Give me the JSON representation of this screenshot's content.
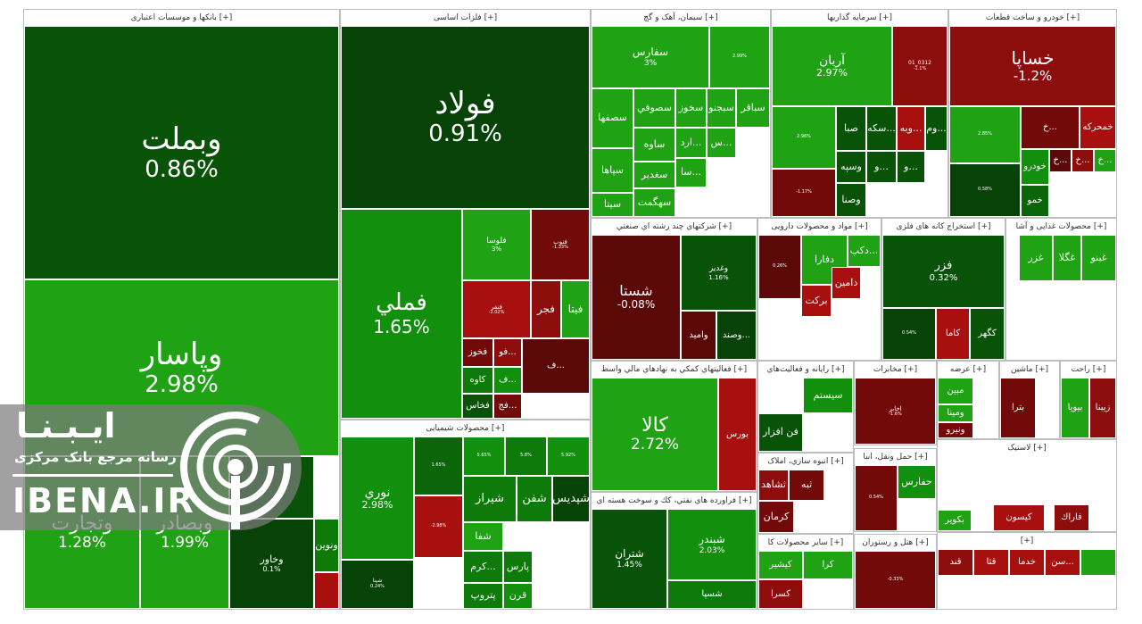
{
  "colors": {
    "g1": "#1fa315",
    "g2": "#128f0c",
    "g3": "#0d7a0a",
    "g4": "#0b6609",
    "g5": "#095308",
    "g6": "#074307",
    "r1": "#a80f0f",
    "r2": "#8d0c0c",
    "r3": "#720a0a",
    "r4": "#5a0808"
  },
  "logo": {
    "word1": "ایـبـنـا",
    "word2": "رسانه مرجع بانک مرکزی",
    "word3": "IBENA.IR",
    "icon": "broadcast-icon"
  },
  "chart_data": {
    "type": "treemap",
    "sectors": [
      {
        "id": "banks",
        "title": "بانکها و موسسات اعتباری [+]",
        "tiles": [
          {
            "sym": "وبملت",
            "chg": "0.86%",
            "c": "g5"
          },
          {
            "sym": "وپاسار",
            "chg": "2.98%",
            "c": "g1"
          },
          {
            "sym": "وتجارت",
            "chg": "1.28%",
            "c": "g1"
          },
          {
            "sym": "وبصادر",
            "chg": "1.99%",
            "c": "g1"
          },
          {
            "sym": "",
            "chg": "",
            "c": "g5"
          },
          {
            "sym": "وخاور",
            "chg": "0.1%",
            "c": "g6"
          },
          {
            "sym": "ونوین",
            "chg": "",
            "c": "g3"
          },
          {
            "sym": "",
            "chg": "",
            "c": "r1"
          }
        ]
      },
      {
        "id": "metals",
        "title": "فلزات اساسی [+]",
        "tiles": [
          {
            "sym": "فولاد",
            "chg": "0.91%",
            "c": "g6"
          },
          {
            "sym": "فملي",
            "chg": "1.65%",
            "c": "g2"
          },
          {
            "sym": "فلوسا",
            "chg": "3%",
            "c": "g1"
          },
          {
            "sym": "فنوب",
            "chg": "-1.33%",
            "c": "r3"
          },
          {
            "sym": "فنفر",
            "chg": "-2.02%",
            "c": "r1"
          },
          {
            "sym": "فجر",
            "chg": "",
            "c": "r2"
          },
          {
            "sym": "فيتا",
            "chg": "",
            "c": "g1"
          },
          {
            "sym": "فخوز",
            "chg": "",
            "c": "r3"
          },
          {
            "sym": "فو...",
            "chg": "",
            "c": "r2"
          },
          {
            "sym": "ف...",
            "chg": "",
            "c": "r4"
          },
          {
            "sym": "كاوه",
            "chg": "",
            "c": "g3"
          },
          {
            "sym": "ف...",
            "chg": "",
            "c": "g2"
          },
          {
            "sym": "فخاس",
            "chg": "",
            "c": "g5"
          },
          {
            "sym": "فج...",
            "chg": "",
            "c": "r3"
          }
        ]
      },
      {
        "id": "chemicals",
        "title": "محصولات شیمیایی [+]",
        "tiles": [
          {
            "sym": "نوري",
            "chg": "2.98%",
            "c": "g2"
          },
          {
            "sym": "شپنا",
            "chg": "0.24%",
            "c": "g6"
          },
          {
            "sym": "شیراز",
            "chg": "",
            "c": "g3"
          },
          {
            "sym": "شفن",
            "chg": "",
            "c": "g3"
          },
          {
            "sym": "شپدیس",
            "chg": "",
            "c": "g6"
          },
          {
            "sym": "شفا",
            "chg": "",
            "c": "g1"
          },
          {
            "sym": "کرم...",
            "chg": "",
            "c": "g3"
          },
          {
            "sym": "پارس",
            "chg": "",
            "c": "g3"
          },
          {
            "sym": "پتروپ",
            "chg": "",
            "c": "g3"
          },
          {
            "sym": "قرن",
            "chg": "",
            "c": "g2"
          },
          {
            "sym": "",
            "chg": "-2.98%",
            "c": "r1"
          },
          {
            "sym": "",
            "chg": "1.65%",
            "c": "g4"
          },
          {
            "sym": "",
            "chg": "5.65%",
            "c": "g2"
          },
          {
            "sym": "",
            "chg": "5.8%",
            "c": "g3"
          },
          {
            "sym": "",
            "chg": "5.92%",
            "c": "g2"
          }
        ]
      },
      {
        "id": "cement",
        "title": "سیمان، آهک و گچ [+]",
        "tiles": [
          {
            "sym": "سفارس",
            "chg": "3%",
            "c": "g1"
          },
          {
            "sym": "",
            "chg": "2.99%",
            "c": "g1"
          },
          {
            "sym": "سصفها",
            "chg": "",
            "c": "g1"
          },
          {
            "sym": "سصوفي",
            "chg": "",
            "c": "g1"
          },
          {
            "sym": "سخوز",
            "chg": "",
            "c": "g1"
          },
          {
            "sym": "سبجنو",
            "chg": "",
            "c": "g1"
          },
          {
            "sym": "سباقر",
            "chg": "",
            "c": "g1"
          },
          {
            "sym": "ساوه",
            "chg": "",
            "c": "g1"
          },
          {
            "sym": "سپاها",
            "chg": "",
            "c": "g1"
          },
          {
            "sym": "سغدير",
            "chg": "",
            "c": "g1"
          },
          {
            "sym": "سيتا",
            "chg": "",
            "c": "g1"
          },
          {
            "sym": "سهگمت",
            "chg": "",
            "c": "g1"
          },
          {
            "sym": "ارد...",
            "chg": "",
            "c": "g1"
          },
          {
            "sym": "سا...",
            "chg": "",
            "c": "g1"
          },
          {
            "sym": "س...",
            "chg": "",
            "c": "g1"
          }
        ]
      },
      {
        "id": "investment",
        "title": "سرمایه گذاریها [+]",
        "tiles": [
          {
            "sym": "آریان",
            "chg": "2.97%",
            "c": "g1"
          },
          {
            "sym": "01_0312",
            "chg": "-1.1%",
            "c": "r2"
          },
          {
            "sym": "",
            "chg": "2.96%",
            "c": "g1"
          },
          {
            "sym": "",
            "chg": "-1.17%",
            "c": "r3"
          },
          {
            "sym": "صبا",
            "chg": "",
            "c": "g5"
          },
          {
            "sym": "سكه...",
            "chg": "",
            "c": "g5"
          },
          {
            "sym": "وبه...",
            "chg": "",
            "c": "r1"
          },
          {
            "sym": "وم...",
            "chg": "",
            "c": "g5"
          },
          {
            "sym": "وسپه",
            "chg": "",
            "c": "g5"
          },
          {
            "sym": "وصنا",
            "chg": "",
            "c": "g5"
          },
          {
            "sym": "و...",
            "chg": "",
            "c": "g5"
          },
          {
            "sym": "و...",
            "chg": "",
            "c": "g5"
          }
        ]
      },
      {
        "id": "auto",
        "title": "خودرو و ساخت قطعات [+]",
        "tiles": [
          {
            "sym": "خساپا",
            "chg": "-1.2%",
            "c": "r2"
          },
          {
            "sym": "",
            "chg": "2.85%",
            "c": "g1"
          },
          {
            "sym": "",
            "chg": "0.58%",
            "c": "g6"
          },
          {
            "sym": "خمحركه",
            "chg": "",
            "c": "r1"
          },
          {
            "sym": "خ...",
            "chg": "",
            "c": "r4"
          },
          {
            "sym": "خودرو",
            "chg": "",
            "c": "g2"
          },
          {
            "sym": "خ...",
            "chg": "",
            "c": "r2"
          },
          {
            "sym": "خ...",
            "chg": "",
            "c": "g1"
          },
          {
            "sym": "خ...",
            "chg": "",
            "c": "r3"
          },
          {
            "sym": "خمو",
            "chg": "",
            "c": "g4"
          }
        ]
      },
      {
        "id": "multi",
        "title": "شرکتهاي چند رشته اي صنعتي [+]",
        "tiles": [
          {
            "sym": "شستا",
            "chg": "-0.08%",
            "c": "r4"
          },
          {
            "sym": "وغدير",
            "chg": "1.16%",
            "c": "g5"
          },
          {
            "sym": "وصند...",
            "chg": "",
            "c": "g6"
          },
          {
            "sym": "واميد",
            "chg": "",
            "c": "r4"
          }
        ]
      },
      {
        "id": "pharma",
        "title": "مواد و محصولات دارویی [+]",
        "tiles": [
          {
            "sym": "",
            "chg": "0.26%",
            "c": "r4"
          },
          {
            "sym": "دكپ...",
            "chg": "",
            "c": "g1"
          },
          {
            "sym": "دفارا",
            "chg": "",
            "c": "g1"
          },
          {
            "sym": "دامين",
            "chg": "",
            "c": "r1"
          },
          {
            "sym": "بركت",
            "chg": "",
            "c": "r1"
          }
        ]
      },
      {
        "id": "mining",
        "title": "استخراج کانه های فلزی [+]",
        "tiles": [
          {
            "sym": "فزر",
            "chg": "0.32%",
            "c": "g5"
          },
          {
            "sym": "",
            "chg": "0.54%",
            "c": "g6"
          },
          {
            "sym": "كاما",
            "chg": "",
            "c": "r1"
          },
          {
            "sym": "كگهر",
            "chg": "",
            "c": "g5"
          }
        ]
      },
      {
        "id": "food",
        "title": "محصولات غذایی و آشا [+]",
        "tiles": [
          {
            "sym": "غبنو",
            "chg": "",
            "c": "g1"
          },
          {
            "sym": "غگلا",
            "chg": "",
            "c": "g1"
          },
          {
            "sym": "غزر",
            "chg": "",
            "c": "g1"
          }
        ]
      },
      {
        "id": "support",
        "title": "فعالیتهاي کمکي به نهادهاي مالي واسط [+]",
        "tiles": [
          {
            "sym": "کالا",
            "chg": "2.72%",
            "c": "g1"
          },
          {
            "sym": "بورس",
            "chg": "",
            "c": "r1"
          }
        ]
      },
      {
        "id": "computer",
        "title": "رايانه و فعاليت‌هاي [+]",
        "tiles": [
          {
            "sym": "سيستم",
            "chg": "",
            "c": "g2"
          },
          {
            "sym": "فن افزار",
            "chg": "",
            "c": "g5"
          }
        ]
      },
      {
        "id": "telecom",
        "title": "مخابرات [+]",
        "tiles": [
          {
            "sym": "اخابر",
            "chg": "-1.6%",
            "c": "r3"
          }
        ]
      },
      {
        "id": "oil",
        "title": "فراورده هاي نفتي، كك و سوخت هسته اي [+]",
        "tiles": [
          {
            "sym": "شتران",
            "chg": "1.45%",
            "c": "g5"
          },
          {
            "sym": "شبندر",
            "chg": "2.03%",
            "c": "g2"
          },
          {
            "sym": "شسپا",
            "chg": "",
            "c": "g3"
          }
        ]
      },
      {
        "id": "realestate",
        "title": "انبوه سازي، املاک [+]",
        "tiles": [
          {
            "sym": "ثبه",
            "chg": "",
            "c": "r3"
          },
          {
            "sym": "ثشاهد",
            "chg": "",
            "c": "r2"
          },
          {
            "sym": "كرمان",
            "chg": "",
            "c": "r3"
          }
        ]
      },
      {
        "id": "transport",
        "title": "حمل ونقل، انبا [+]",
        "tiles": [
          {
            "sym": "حفارس",
            "chg": "",
            "c": "g2"
          },
          {
            "sym": "",
            "chg": "0.54%",
            "c": "r3"
          }
        ]
      },
      {
        "id": "nonmetal",
        "title": "سایر محصولات کا [+]",
        "tiles": [
          {
            "sym": "كيشير",
            "chg": "",
            "c": "g1"
          },
          {
            "sym": "كرا",
            "chg": "",
            "c": "g1"
          },
          {
            "sym": "كسرا",
            "chg": "",
            "c": "r2"
          }
        ]
      },
      {
        "id": "hotel",
        "title": "هتل و رستوران [+]",
        "tiles": [
          {
            "sym": "",
            "chg": "-0.33%",
            "c": "r3"
          }
        ]
      },
      {
        "id": "retail",
        "title": "عرضه [+]",
        "tiles": [
          {
            "sym": "مبين",
            "chg": "",
            "c": "g1"
          },
          {
            "sym": "ومينا",
            "chg": "",
            "c": "g1"
          },
          {
            "sym": "ونيرو",
            "chg": "",
            "c": "r3"
          }
        ]
      },
      {
        "id": "machinery",
        "title": "ماشين [+]",
        "tiles": [
          {
            "sym": "بترا",
            "chg": "",
            "c": "r3"
          }
        ]
      },
      {
        "id": "electric",
        "title": "راحت [+]",
        "tiles": [
          {
            "sym": "بيويا",
            "chg": "",
            "c": "g1"
          },
          {
            "sym": "زيبنا",
            "chg": "",
            "c": "r2"
          }
        ]
      },
      {
        "id": "plastic",
        "title": "لاستیک [+]",
        "tiles": [
          {
            "sym": "بكوير",
            "chg": "",
            "c": "g1"
          },
          {
            "sym": "كيسون",
            "chg": "",
            "c": "r1"
          },
          {
            "sym": "فاراك",
            "chg": "",
            "c": "r2"
          }
        ]
      },
      {
        "id": "other",
        "title": "[+]",
        "tiles": [
          {
            "sym": "قند",
            "chg": "",
            "c": "r2"
          },
          {
            "sym": "قثا",
            "chg": "",
            "c": "r1"
          },
          {
            "sym": "خدما",
            "chg": "",
            "c": "r1"
          },
          {
            "sym": "سن...",
            "chg": "",
            "c": "r1"
          },
          {
            "sym": "",
            "chg": "",
            "c": "g1"
          }
        ]
      }
    ]
  }
}
